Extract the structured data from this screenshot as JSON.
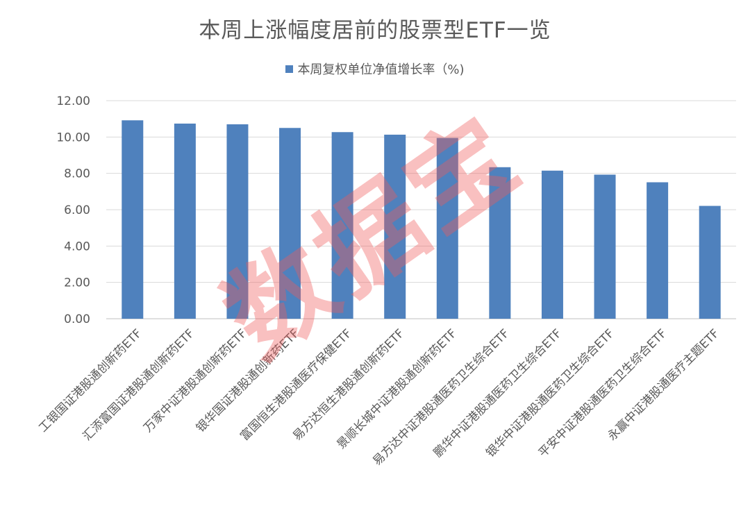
{
  "chart_data": {
    "type": "bar",
    "title": "本周上涨幅度居前的股票型ETF一览",
    "legend": {
      "position": "top",
      "entries": [
        "本周复权单位净值增长率（%)"
      ]
    },
    "grid": true,
    "ylim": [
      0,
      12
    ],
    "yticks": [
      "0.00",
      "2.00",
      "4.00",
      "6.00",
      "8.00",
      "10.00",
      "12.00"
    ],
    "categories": [
      "工银国证港股通创新药ETF",
      "汇添富国证港股通创新药ETF",
      "万家中证港股通创新药ETF",
      "银华国证港股通创新药ETF",
      "富国恒生港股通医疗保健ETF",
      "易方达恒生港股通创新药ETF",
      "景顺长城中证港股通创新药ETF",
      "易方达中证港股通医药卫生综合ETF",
      "鹏华中证港股通医药卫生综合ETF",
      "银华中证港股通医药卫生综合ETF",
      "平安中证港股通医药卫生综合ETF",
      "永赢中证港股通医疗主题ETF"
    ],
    "series": [
      {
        "name": "本周复权单位净值增长率（%)",
        "color": "#4f81bd",
        "values": [
          10.92,
          10.74,
          10.7,
          10.5,
          10.27,
          10.13,
          9.95,
          8.34,
          8.15,
          7.93,
          7.51,
          6.21
        ]
      }
    ],
    "watermark": "数据宝"
  }
}
